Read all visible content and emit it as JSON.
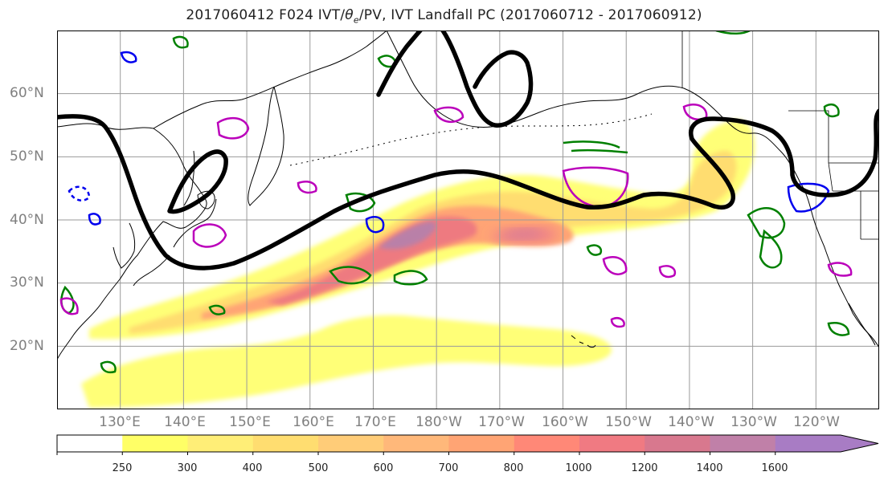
{
  "title": "2017060412 F024 IVT/θe/PV, IVT Landfall PC (2017060712 - 2017060912)",
  "title_parts": {
    "before": "2017060412 F024 IVT/",
    "theta": "θ",
    "theta_sub": "e",
    "after": "/PV, IVT Landfall PC (2017060712 - 2017060912)"
  },
  "map": {
    "projection": "equirectangular",
    "lon_range_east": [
      120,
      250
    ],
    "lat_range": [
      10,
      70
    ],
    "lat_ticks": [
      {
        "lat": 20,
        "label": "20°N"
      },
      {
        "lat": 30,
        "label": "30°N"
      },
      {
        "lat": 40,
        "label": "40°N"
      },
      {
        "lat": 50,
        "label": "50°N"
      },
      {
        "lat": 60,
        "label": "60°N"
      }
    ],
    "lon_ticks": [
      {
        "lon": 130,
        "label": "130°E"
      },
      {
        "lon": 140,
        "label": "140°E"
      },
      {
        "lon": 150,
        "label": "150°E"
      },
      {
        "lon": 160,
        "label": "160°E"
      },
      {
        "lon": 170,
        "label": "170°E"
      },
      {
        "lon": 180,
        "label": "180°W"
      },
      {
        "lon": 190,
        "label": "170°W"
      },
      {
        "lon": 200,
        "label": "160°W"
      },
      {
        "lon": 210,
        "label": "150°W"
      },
      {
        "lon": 220,
        "label": "140°W"
      },
      {
        "lon": 230,
        "label": "130°W"
      },
      {
        "lon": 240,
        "label": "120°W"
      }
    ],
    "grid": true
  },
  "colorbar": {
    "levels": [
      250,
      300,
      400,
      500,
      600,
      700,
      800,
      1000,
      1200,
      1400,
      1600
    ],
    "colors": [
      "#ffff66",
      "#ffee77",
      "#ffdd70",
      "#ffcc78",
      "#ffb87a",
      "#ffa474",
      "#ff8877",
      "#f07a82",
      "#d8788e",
      "#c080a8",
      "#a87cc4"
    ],
    "extend": "max"
  },
  "colors": {
    "ivt_landfall_pc": "#000000",
    "theta_e": "#008000",
    "pv_positive": "#bb00bb",
    "pv_negative": "#0000ee",
    "coast": "#000000",
    "grid": "#999999"
  }
}
